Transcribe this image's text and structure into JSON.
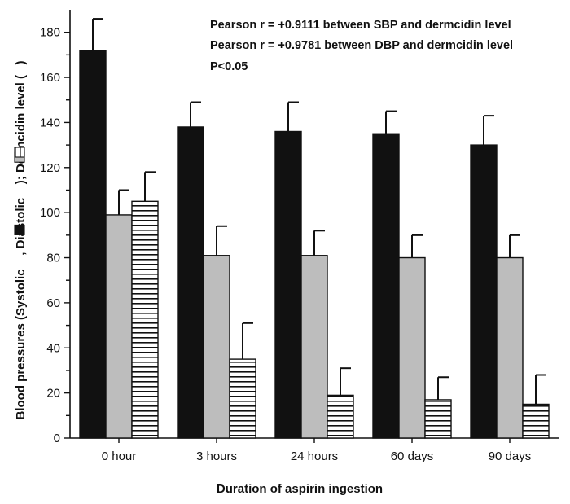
{
  "chart_data": {
    "type": "bar",
    "categories": [
      "0 hour",
      "3 hours",
      "24 hours",
      "60 days",
      "90 days"
    ],
    "series": [
      {
        "values": [
          172,
          138,
          136,
          135,
          130
        ],
        "errors": [
          14,
          11,
          13,
          10,
          13
        ],
        "fill": "#111111",
        "pattern": "solid"
      },
      {
        "values": [
          99,
          81,
          81,
          80,
          80
        ],
        "errors": [
          11,
          13,
          11,
          10,
          10
        ],
        "fill": "#bdbdbd",
        "pattern": "solid"
      },
      {
        "values": [
          105,
          35,
          19,
          17,
          15
        ],
        "errors": [
          13,
          16,
          12,
          10,
          13
        ],
        "fill": "#ffffff",
        "pattern": "horizontal-stripes"
      }
    ],
    "xlabel": "Duration of aspirin ingestion",
    "ylabel_parts": {
      "before_systolic": "Blood pressures (Systolic ",
      "before_diastolic": ", Diastolic ",
      "before_dermcidin": "); Dermcidin level (",
      "end": ")"
    },
    "ylim": [
      0,
      190
    ],
    "yticks": [
      0,
      20,
      40,
      60,
      80,
      100,
      120,
      140,
      160,
      180
    ],
    "annotations": [
      "Pearson r = +0.9111 between SBP and dermcidin level",
      "Pearson r = +0.9781 between DBP and dermcidin level",
      "P<0.05"
    ],
    "grid": false,
    "legend": "inline in y-axis label"
  }
}
